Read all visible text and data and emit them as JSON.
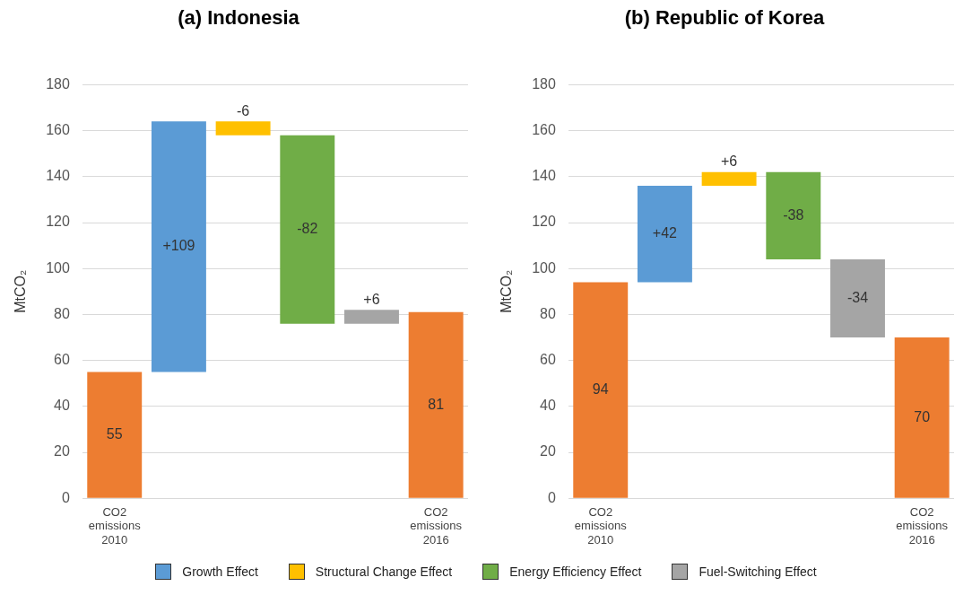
{
  "chart_data": [
    {
      "type": "bar",
      "title": "(a) Indonesia",
      "ylabel": "MtCO₂",
      "categories": [
        "CO2 emissions 2010",
        null,
        null,
        null,
        null,
        "CO2 emissions 2016"
      ],
      "series": [
        {
          "color": "#ed7d31",
          "values": [
            55,
            null,
            null,
            null,
            null,
            81
          ],
          "base": [
            0,
            null,
            null,
            null,
            null,
            0
          ],
          "value_labels": [
            "55",
            null,
            null,
            null,
            null,
            "81"
          ]
        },
        {
          "color": "#5b9bd5",
          "values": [
            null,
            109,
            null,
            null,
            null,
            null
          ],
          "base": [
            null,
            55,
            null,
            null,
            null,
            null
          ],
          "value_labels": [
            null,
            "+109",
            null,
            null,
            null,
            null
          ]
        },
        {
          "color": "#ffc000",
          "values": [
            null,
            null,
            -6,
            null,
            null,
            null
          ],
          "base": [
            null,
            null,
            164,
            null,
            null,
            null
          ],
          "value_labels": [
            null,
            null,
            "-6",
            null,
            null,
            null
          ]
        },
        {
          "color": "#70ad47",
          "values": [
            null,
            null,
            null,
            -82,
            null,
            null
          ],
          "base": [
            null,
            null,
            null,
            158,
            null,
            null
          ],
          "value_labels": [
            null,
            null,
            null,
            "-82",
            null,
            null
          ]
        },
        {
          "color": "#a5a5a5",
          "values": [
            null,
            null,
            null,
            null,
            6,
            null
          ],
          "base": [
            null,
            null,
            null,
            null,
            76,
            null
          ],
          "value_labels": [
            null,
            null,
            null,
            null,
            "+6",
            null
          ]
        }
      ],
      "ylim": [
        0,
        180
      ],
      "yticks": [
        0,
        20,
        40,
        60,
        80,
        100,
        120,
        140,
        160,
        180
      ],
      "grid": "y"
    },
    {
      "type": "bar",
      "title": "(b) Republic of Korea",
      "ylabel": "MtCO₂",
      "categories": [
        "CO2 emissions 2010",
        null,
        null,
        null,
        null,
        "CO2 emissions 2016"
      ],
      "series": [
        {
          "color": "#ed7d31",
          "values": [
            94,
            null,
            null,
            null,
            null,
            70
          ],
          "base": [
            0,
            null,
            null,
            null,
            null,
            0
          ],
          "value_labels": [
            "94",
            null,
            null,
            null,
            null,
            "70"
          ]
        },
        {
          "name": "Growth Effect",
          "color": "#5b9bd5",
          "values": [
            null,
            42,
            null,
            null,
            null,
            null
          ],
          "base": [
            null,
            94,
            null,
            null,
            null,
            null
          ],
          "value_labels": [
            null,
            "+42",
            null,
            null,
            null,
            null
          ]
        },
        {
          "name": "Structural Change Effect",
          "color": "#ffc000",
          "values": [
            null,
            null,
            6,
            null,
            null,
            null
          ],
          "base": [
            null,
            null,
            136,
            null,
            null,
            null
          ],
          "value_labels": [
            null,
            null,
            "+6",
            null,
            null,
            null
          ]
        },
        {
          "name": "Energy Efficiency Effect",
          "color": "#70ad47",
          "values": [
            null,
            null,
            null,
            -38,
            null,
            null
          ],
          "base": [
            null,
            null,
            null,
            142,
            null,
            null
          ],
          "value_labels": [
            null,
            null,
            null,
            "-38",
            null,
            null
          ]
        },
        {
          "name": "Fuel-Switching Effect",
          "color": "#a5a5a5",
          "values": [
            null,
            null,
            null,
            null,
            -34,
            null
          ],
          "base": [
            null,
            null,
            null,
            null,
            104,
            null
          ],
          "value_labels": [
            null,
            null,
            null,
            null,
            "-34",
            null
          ]
        }
      ],
      "ylim": [
        0,
        180
      ],
      "yticks": [
        0,
        20,
        40,
        60,
        80,
        100,
        120,
        140,
        160,
        180
      ],
      "grid": "y",
      "legend": "bottom"
    }
  ]
}
